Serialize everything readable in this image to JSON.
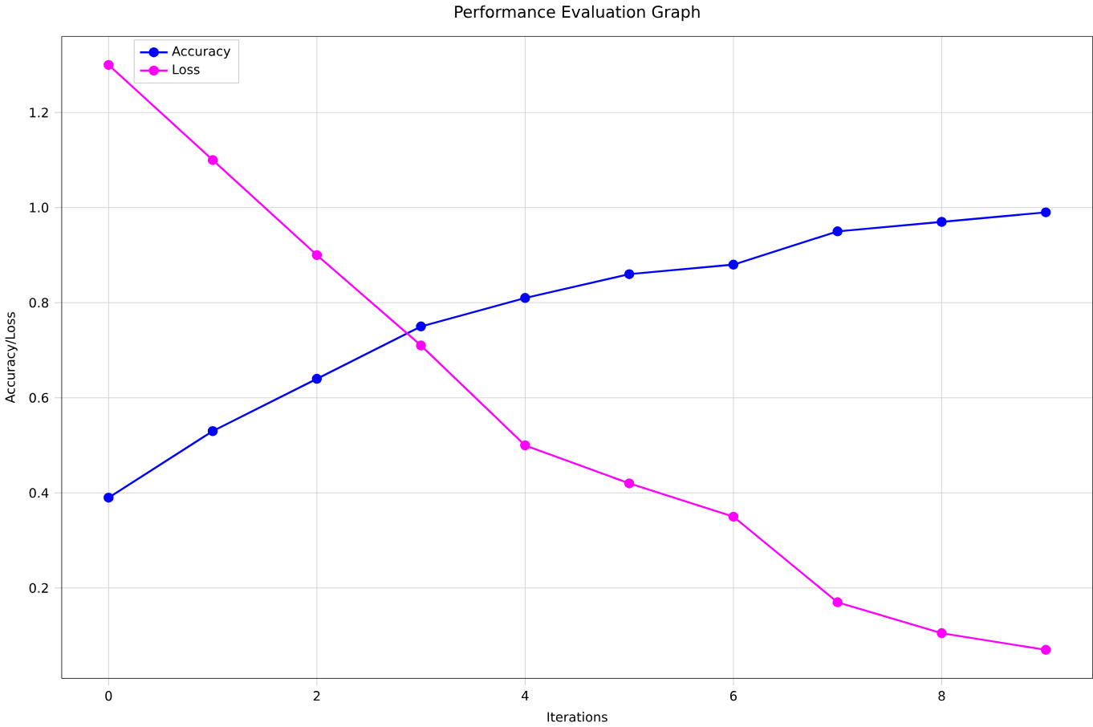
{
  "chart_data": {
    "type": "line",
    "title": "Performance Evaluation Graph",
    "xlabel": "Iterations",
    "ylabel": "Accuracy/Loss",
    "x": [
      0,
      1,
      2,
      3,
      4,
      5,
      6,
      7,
      8,
      9
    ],
    "series": [
      {
        "name": "Accuracy",
        "color": "#0000ff",
        "values": [
          0.39,
          0.53,
          0.64,
          0.75,
          0.81,
          0.86,
          0.88,
          0.95,
          0.97,
          0.99
        ]
      },
      {
        "name": "Loss",
        "color": "#ff00ff",
        "values": [
          1.3,
          1.1,
          0.9,
          0.71,
          0.5,
          0.42,
          0.35,
          0.17,
          0.105,
          0.07
        ]
      }
    ],
    "xlim": [
      -0.45,
      9.45
    ],
    "ylim": [
      0.01,
      1.36
    ],
    "xticks": [
      0,
      2,
      4,
      6,
      8
    ],
    "yticks": [
      0.2,
      0.4,
      0.6,
      0.8,
      {
        "value": 1.0,
        "label": "1.0"
      },
      1.2
    ],
    "grid": true,
    "legend": "top left",
    "marker": "circle",
    "line_style": "solid"
  }
}
